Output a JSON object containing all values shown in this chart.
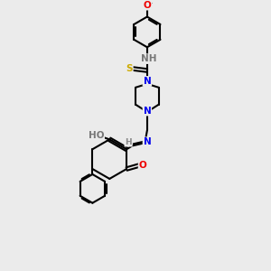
{
  "bg_color": "#ebebeb",
  "bond_color": "#000000",
  "bond_width": 1.5,
  "atom_colors": {
    "N": "#0000ee",
    "O": "#ee0000",
    "S": "#ccaa00",
    "HN": "#777777",
    "HO": "#777777",
    "C": "#000000"
  },
  "font_size": 7.5,
  "figsize": [
    3.0,
    3.0
  ],
  "dpi": 100
}
